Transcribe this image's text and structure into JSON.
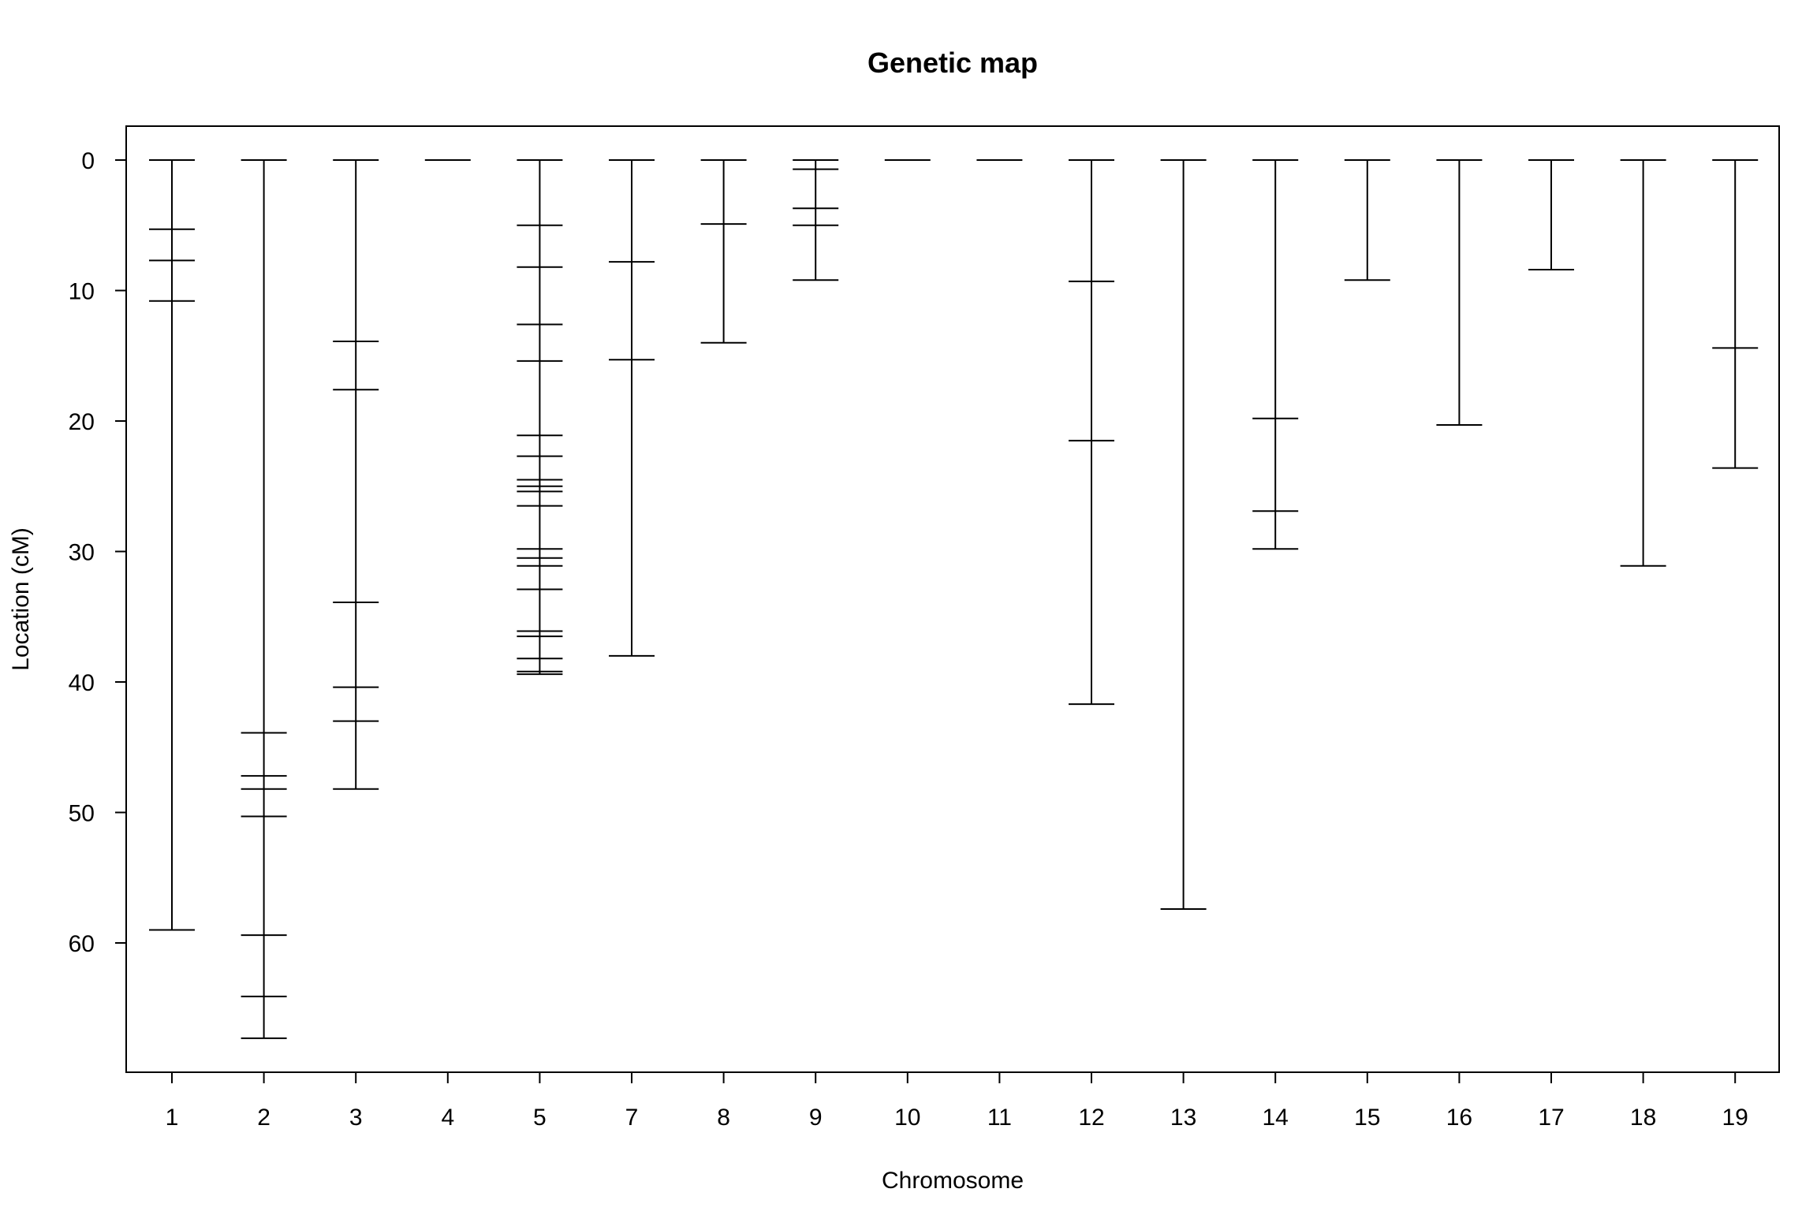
{
  "chart_data": {
    "type": "genetic-map",
    "title": "Genetic map",
    "xlabel": "Chromosome",
    "ylabel": "Location (cM)",
    "y_axis_reversed": true,
    "ylim": [
      0,
      70
    ],
    "yticks": [
      0,
      10,
      20,
      30,
      40,
      50,
      60
    ],
    "grid": false,
    "chromosomes": [
      {
        "chr": "1",
        "markers": [
          0,
          5.3,
          7.7,
          10.8,
          59.0
        ]
      },
      {
        "chr": "2",
        "markers": [
          0,
          43.9,
          47.2,
          48.2,
          50.3,
          59.4,
          64.1,
          67.3
        ]
      },
      {
        "chr": "3",
        "markers": [
          0,
          13.9,
          17.6,
          33.9,
          40.4,
          43.0,
          48.2
        ]
      },
      {
        "chr": "4",
        "markers": [
          0
        ]
      },
      {
        "chr": "5",
        "markers": [
          0,
          5.0,
          8.2,
          12.6,
          15.4,
          21.1,
          22.7,
          24.5,
          25.0,
          25.4,
          26.5,
          29.8,
          30.5,
          31.1,
          32.9,
          36.1,
          36.5,
          38.2,
          39.2,
          39.4
        ]
      },
      {
        "chr": "7",
        "markers": [
          0,
          7.8,
          15.3,
          38.0
        ]
      },
      {
        "chr": "8",
        "markers": [
          0,
          4.9,
          14.0
        ]
      },
      {
        "chr": "9",
        "markers": [
          0,
          0.7,
          3.7,
          5.0,
          9.2
        ]
      },
      {
        "chr": "10",
        "markers": [
          0
        ]
      },
      {
        "chr": "11",
        "markers": [
          0
        ]
      },
      {
        "chr": "12",
        "markers": [
          0,
          9.3,
          21.5,
          41.7
        ]
      },
      {
        "chr": "13",
        "markers": [
          0,
          57.4
        ]
      },
      {
        "chr": "14",
        "markers": [
          0,
          19.8,
          26.9,
          29.8
        ]
      },
      {
        "chr": "15",
        "markers": [
          0,
          9.2
        ]
      },
      {
        "chr": "16",
        "markers": [
          0,
          20.3
        ]
      },
      {
        "chr": "17",
        "markers": [
          0,
          8.4
        ]
      },
      {
        "chr": "18",
        "markers": [
          0,
          31.1
        ]
      },
      {
        "chr": "19",
        "markers": [
          0,
          14.4,
          23.6
        ]
      }
    ]
  }
}
